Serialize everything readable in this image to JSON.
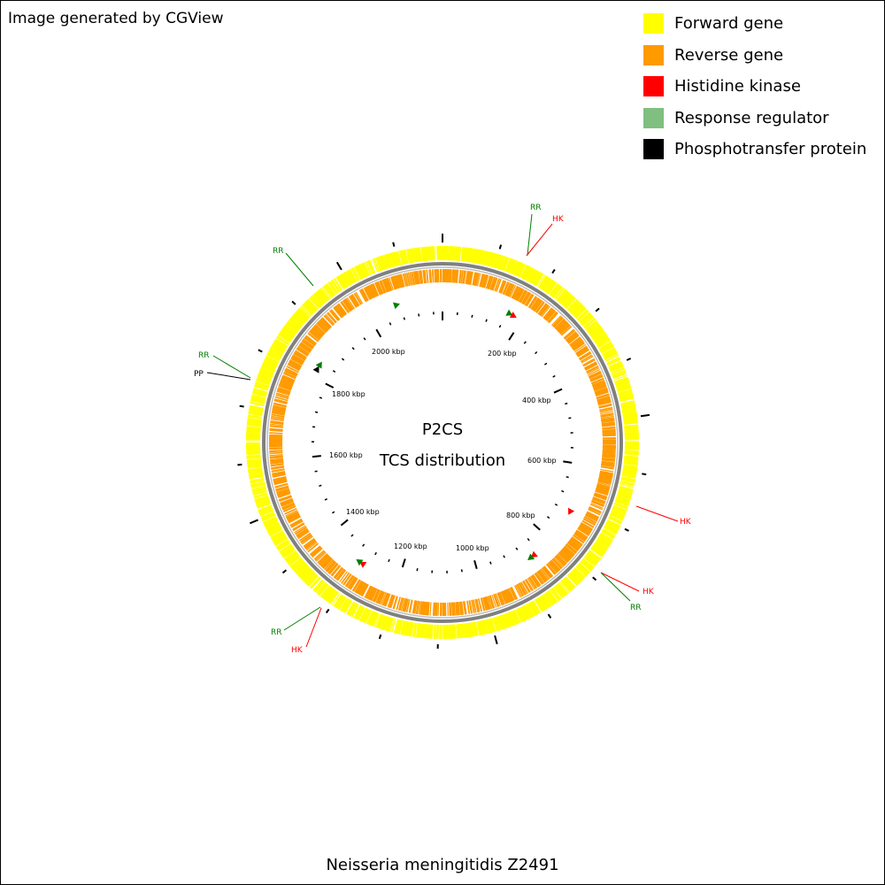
{
  "credit": "Image generated by CGView",
  "legend": [
    {
      "label": "Forward gene",
      "color": "#ffff00"
    },
    {
      "label": "Reverse gene",
      "color": "#ff9a00"
    },
    {
      "label": "Histidine kinase",
      "color": "#ff0000"
    },
    {
      "label": "Response regulator",
      "color": "#7fbf7f"
    },
    {
      "label": "Phosphotransfer protein",
      "color": "#000000"
    }
  ],
  "center_title_line1": "P2CS",
  "center_title_line2": "TCS distribution",
  "genome_name": "Neisseria meningitidis Z2491",
  "map": {
    "genome_length_kbp": 2184,
    "tick_labels": [
      {
        "kbp": 200,
        "text": "200 kbp"
      },
      {
        "kbp": 400,
        "text": "400 kbp"
      },
      {
        "kbp": 600,
        "text": "600 kbp"
      },
      {
        "kbp": 800,
        "text": "800 kbp"
      },
      {
        "kbp": 1000,
        "text": "1000 kbp"
      },
      {
        "kbp": 1200,
        "text": "1200 kbp"
      },
      {
        "kbp": 1400,
        "text": "1400 kbp"
      },
      {
        "kbp": 1600,
        "text": "1600 kbp"
      },
      {
        "kbp": 1800,
        "text": "1800 kbp"
      },
      {
        "kbp": 2000,
        "text": "2000 kbp"
      }
    ],
    "tcs_genes": [
      {
        "kbp": 167,
        "type": "RR",
        "color": "#008000"
      },
      {
        "kbp": 178,
        "type": "HK",
        "color": "#ff0000"
      },
      {
        "kbp": 719,
        "type": "HK",
        "color": "#ff0000"
      },
      {
        "kbp": 856,
        "type": "HK",
        "color": "#ff0000"
      },
      {
        "kbp": 866,
        "type": "RR",
        "color": "#008000"
      },
      {
        "kbp": 1295,
        "type": "HK",
        "color": "#ff0000"
      },
      {
        "kbp": 1305,
        "type": "RR",
        "color": "#008000"
      },
      {
        "kbp": 1822,
        "type": "PP",
        "color": "#000000"
      },
      {
        "kbp": 1835,
        "type": "RR",
        "color": "#008000"
      },
      {
        "kbp": 2072,
        "type": "RR",
        "color": "#008000"
      }
    ],
    "callouts": [
      {
        "text": "RR",
        "color": "#008000"
      },
      {
        "text": "HK",
        "color": "#ff0000"
      },
      {
        "text": "HK",
        "color": "#ff0000"
      },
      {
        "text": "HK",
        "color": "#ff0000"
      },
      {
        "text": "RR",
        "color": "#008000"
      },
      {
        "text": "RR",
        "color": "#008000"
      },
      {
        "text": "HK",
        "color": "#ff0000"
      },
      {
        "text": "RR",
        "color": "#008000"
      },
      {
        "text": "PP",
        "color": "#000000"
      },
      {
        "text": "RR",
        "color": "#008000"
      }
    ]
  }
}
